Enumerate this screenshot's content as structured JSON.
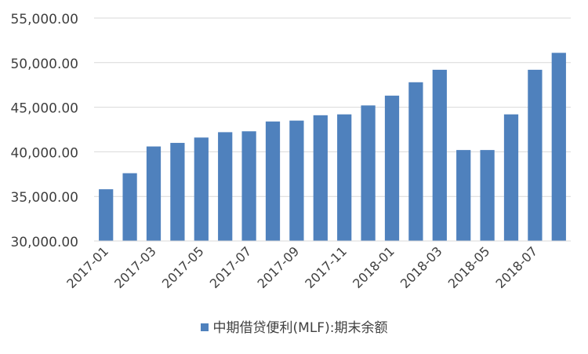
{
  "chart_data": {
    "type": "bar",
    "title": "",
    "xlabel": "",
    "ylabel": "",
    "categories": [
      "2017-01",
      "2017-02",
      "2017-03",
      "2017-04",
      "2017-05",
      "2017-06",
      "2017-07",
      "2017-08",
      "2017-09",
      "2017-10",
      "2017-11",
      "2017-12",
      "2018-01",
      "2018-02",
      "2018-03",
      "2018-04",
      "2018-05",
      "2018-06",
      "2018-07",
      "2018-08"
    ],
    "x_tick_labels": [
      "2017-01",
      "2017-03",
      "2017-05",
      "2017-07",
      "2017-09",
      "2017-11",
      "2018-01",
      "2018-03",
      "2018-05",
      "2018-07"
    ],
    "series": [
      {
        "name": "中期借贷便利(MLF):期末余额",
        "color": "#4f81bd",
        "values": [
          35800,
          37600,
          40600,
          41000,
          41600,
          42200,
          42300,
          43400,
          43500,
          44100,
          44200,
          45200,
          46300,
          47800,
          49200,
          40200,
          40200,
          44200,
          49200,
          51100
        ]
      }
    ],
    "ylim": [
      30000,
      55000
    ],
    "y_ticks": [
      30000,
      35000,
      40000,
      45000,
      50000,
      55000
    ],
    "y_tick_labels": [
      "30,000.00",
      "35,000.00",
      "40,000.00",
      "45,000.00",
      "50,000.00",
      "55,000.00"
    ],
    "grid": true,
    "legend_position": "bottom"
  }
}
